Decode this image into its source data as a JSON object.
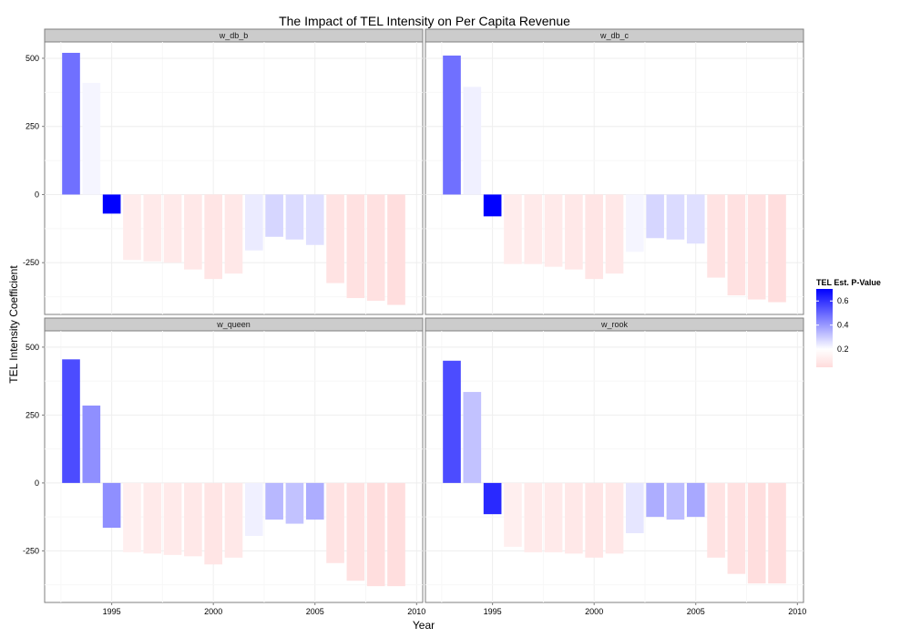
{
  "chart_data": {
    "type": "bar",
    "title": "The Impact of TEL Intensity on Per Capita Revenue",
    "xlabel": "Year",
    "ylabel": "TEL Intensity Coefficient",
    "x_ticks": [
      1995,
      2000,
      2005,
      2010
    ],
    "y_ticks": [
      -250,
      0,
      250,
      500
    ],
    "xlim": [
      1991.7,
      2010.3
    ],
    "ylim": [
      -440,
      560
    ],
    "grid": true,
    "legend": {
      "title": "TEL Est. P-Value",
      "ticks": [
        0.6,
        0.4,
        0.2
      ],
      "range": [
        0.05,
        0.7
      ],
      "placement": "right",
      "colors": {
        "high": "#0000ff",
        "mid": "#ffffff",
        "low": "#ffdcdc"
      }
    },
    "years": [
      1993,
      1994,
      1995,
      1996,
      1997,
      1998,
      1999,
      2000,
      2001,
      2002,
      2003,
      2004,
      2005,
      2006,
      2007,
      2008,
      2009
    ],
    "panels": [
      {
        "label": "w_db_b",
        "values": [
          520,
          410,
          -70,
          -240,
          -245,
          -250,
          -275,
          -310,
          -290,
          -205,
          -155,
          -165,
          -185,
          -325,
          -380,
          -390,
          -405
        ],
        "pvalues": [
          0.48,
          0.22,
          0.7,
          0.12,
          0.11,
          0.11,
          0.1,
          0.09,
          0.1,
          0.24,
          0.28,
          0.27,
          0.26,
          0.08,
          0.07,
          0.07,
          0.06
        ]
      },
      {
        "label": "w_db_c",
        "values": [
          510,
          395,
          -80,
          -255,
          -255,
          -265,
          -275,
          -310,
          -290,
          -210,
          -160,
          -165,
          -180,
          -305,
          -370,
          -385,
          -395
        ],
        "pvalues": [
          0.48,
          0.23,
          0.7,
          0.12,
          0.11,
          0.11,
          0.1,
          0.09,
          0.1,
          0.22,
          0.28,
          0.27,
          0.26,
          0.08,
          0.07,
          0.07,
          0.06
        ]
      },
      {
        "label": "w_queen",
        "values": [
          455,
          285,
          -165,
          -255,
          -260,
          -265,
          -270,
          -300,
          -275,
          -195,
          -135,
          -150,
          -135,
          -295,
          -360,
          -380,
          -380
        ],
        "pvalues": [
          0.55,
          0.42,
          0.42,
          0.13,
          0.11,
          0.11,
          0.1,
          0.09,
          0.1,
          0.23,
          0.34,
          0.32,
          0.36,
          0.08,
          0.07,
          0.06,
          0.06
        ]
      },
      {
        "label": "w_rook",
        "values": [
          450,
          335,
          -115,
          -235,
          -255,
          -255,
          -260,
          -275,
          -260,
          -185,
          -125,
          -135,
          -125,
          -275,
          -335,
          -370,
          -370
        ],
        "pvalues": [
          0.55,
          0.32,
          0.62,
          0.13,
          0.11,
          0.11,
          0.1,
          0.09,
          0.1,
          0.25,
          0.36,
          0.33,
          0.37,
          0.08,
          0.07,
          0.06,
          0.06
        ]
      }
    ]
  }
}
